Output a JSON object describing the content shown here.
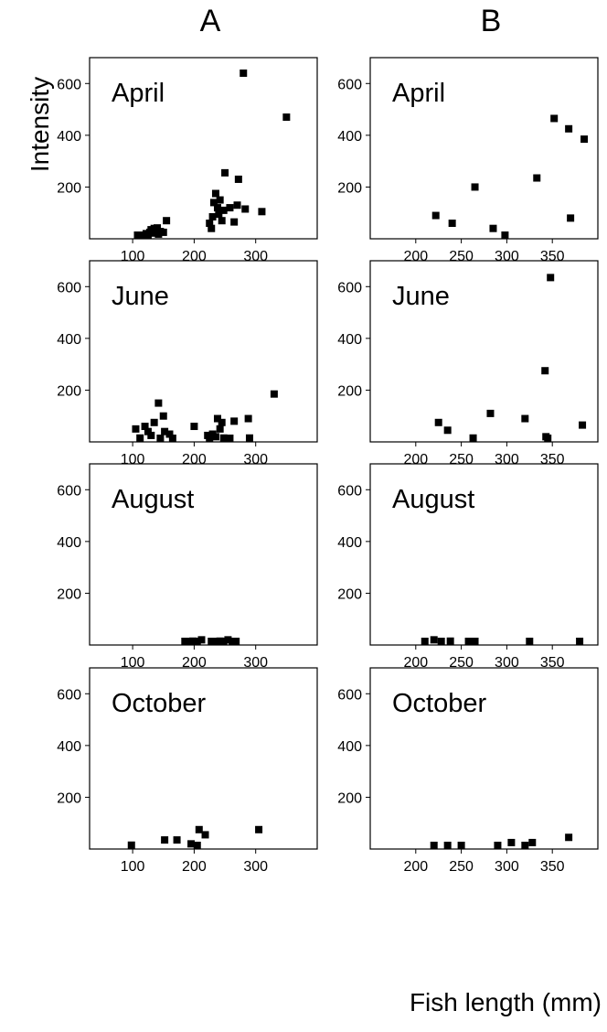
{
  "figure": {
    "column_labels": [
      "A",
      "B"
    ],
    "y_axis_label": "Intensity",
    "x_axis_label": "Fish length (mm)"
  },
  "colors": {
    "marker": "#000000",
    "axis": "#000000",
    "background": "#ffffff"
  },
  "chart_data": [
    {
      "type": "scatter",
      "column": "A",
      "title": "April",
      "xlim": [
        30,
        400
      ],
      "xticks": [
        100,
        200,
        300
      ],
      "ylim": [
        0,
        700
      ],
      "yticks": [
        200,
        400,
        600
      ],
      "grid": false,
      "points": [
        [
          108,
          5
        ],
        [
          115,
          8
        ],
        [
          120,
          12
        ],
        [
          122,
          20
        ],
        [
          125,
          15
        ],
        [
          128,
          25
        ],
        [
          130,
          35
        ],
        [
          132,
          22
        ],
        [
          135,
          40
        ],
        [
          138,
          30
        ],
        [
          140,
          42
        ],
        [
          142,
          18
        ],
        [
          145,
          28
        ],
        [
          150,
          25
        ],
        [
          155,
          70
        ],
        [
          225,
          60
        ],
        [
          228,
          40
        ],
        [
          230,
          85
        ],
        [
          232,
          140
        ],
        [
          235,
          175
        ],
        [
          238,
          120
        ],
        [
          240,
          95
        ],
        [
          242,
          150
        ],
        [
          245,
          70
        ],
        [
          248,
          110
        ],
        [
          250,
          255
        ],
        [
          258,
          120
        ],
        [
          265,
          65
        ],
        [
          270,
          130
        ],
        [
          272,
          230
        ],
        [
          283,
          115
        ],
        [
          280,
          640
        ],
        [
          310,
          105
        ],
        [
          350,
          470
        ]
      ]
    },
    {
      "type": "scatter",
      "column": "B",
      "title": "April",
      "xlim": [
        150,
        400
      ],
      "xticks": [
        200,
        250,
        300,
        350
      ],
      "ylim": [
        0,
        700
      ],
      "yticks": [
        200,
        400,
        600
      ],
      "grid": false,
      "points": [
        [
          222,
          90
        ],
        [
          240,
          60
        ],
        [
          265,
          200
        ],
        [
          285,
          40
        ],
        [
          298,
          5
        ],
        [
          333,
          235
        ],
        [
          352,
          465
        ],
        [
          368,
          425
        ],
        [
          370,
          80
        ],
        [
          385,
          385
        ]
      ]
    },
    {
      "type": "scatter",
      "column": "A",
      "title": "June",
      "xlim": [
        30,
        400
      ],
      "xticks": [
        100,
        200,
        300
      ],
      "ylim": [
        0,
        700
      ],
      "yticks": [
        200,
        400,
        600
      ],
      "grid": false,
      "points": [
        [
          105,
          50
        ],
        [
          112,
          15
        ],
        [
          120,
          60
        ],
        [
          125,
          40
        ],
        [
          130,
          25
        ],
        [
          135,
          75
        ],
        [
          142,
          150
        ],
        [
          145,
          10
        ],
        [
          150,
          100
        ],
        [
          152,
          40
        ],
        [
          160,
          30
        ],
        [
          165,
          10
        ],
        [
          200,
          60
        ],
        [
          222,
          25
        ],
        [
          225,
          10
        ],
        [
          230,
          30
        ],
        [
          235,
          20
        ],
        [
          238,
          90
        ],
        [
          242,
          50
        ],
        [
          245,
          75
        ],
        [
          248,
          15
        ],
        [
          252,
          10
        ],
        [
          258,
          10
        ],
        [
          265,
          80
        ],
        [
          288,
          90
        ],
        [
          290,
          15
        ],
        [
          330,
          185
        ]
      ]
    },
    {
      "type": "scatter",
      "column": "B",
      "title": "June",
      "xlim": [
        150,
        400
      ],
      "xticks": [
        200,
        250,
        300,
        350
      ],
      "ylim": [
        0,
        700
      ],
      "yticks": [
        200,
        400,
        600
      ],
      "grid": false,
      "points": [
        [
          225,
          75
        ],
        [
          235,
          45
        ],
        [
          263,
          15
        ],
        [
          282,
          110
        ],
        [
          320,
          90
        ],
        [
          342,
          275
        ],
        [
          343,
          20
        ],
        [
          345,
          10
        ],
        [
          348,
          635
        ],
        [
          383,
          65
        ]
      ]
    },
    {
      "type": "scatter",
      "column": "A",
      "title": "August",
      "xlim": [
        30,
        400
      ],
      "xticks": [
        100,
        200,
        300
      ],
      "ylim": [
        0,
        700
      ],
      "yticks": [
        200,
        400,
        600
      ],
      "grid": false,
      "points": [
        [
          185,
          5
        ],
        [
          193,
          10
        ],
        [
          198,
          15
        ],
        [
          205,
          8
        ],
        [
          212,
          20
        ],
        [
          228,
          5
        ],
        [
          235,
          10
        ],
        [
          242,
          15
        ],
        [
          248,
          5
        ],
        [
          255,
          20
        ],
        [
          262,
          8
        ],
        [
          268,
          10
        ]
      ]
    },
    {
      "type": "scatter",
      "column": "B",
      "title": "August",
      "xlim": [
        150,
        400
      ],
      "xticks": [
        200,
        250,
        300,
        350
      ],
      "ylim": [
        0,
        700
      ],
      "yticks": [
        200,
        400,
        600
      ],
      "grid": false,
      "points": [
        [
          210,
          10
        ],
        [
          220,
          20
        ],
        [
          228,
          5
        ],
        [
          238,
          15
        ],
        [
          258,
          10
        ],
        [
          265,
          10
        ],
        [
          325,
          5
        ],
        [
          380,
          5
        ]
      ]
    },
    {
      "type": "scatter",
      "column": "A",
      "title": "October",
      "xlim": [
        30,
        400
      ],
      "xticks": [
        100,
        200,
        300
      ],
      "ylim": [
        0,
        700
      ],
      "yticks": [
        200,
        400,
        600
      ],
      "grid": false,
      "points": [
        [
          98,
          15
        ],
        [
          152,
          35
        ],
        [
          172,
          35
        ],
        [
          195,
          20
        ],
        [
          205,
          10
        ],
        [
          208,
          75
        ],
        [
          218,
          55
        ],
        [
          305,
          75
        ]
      ]
    },
    {
      "type": "scatter",
      "column": "B",
      "title": "October",
      "xlim": [
        150,
        400
      ],
      "xticks": [
        200,
        250,
        300,
        350
      ],
      "ylim": [
        0,
        700
      ],
      "yticks": [
        200,
        400,
        600
      ],
      "grid": false,
      "points": [
        [
          220,
          5
        ],
        [
          235,
          5
        ],
        [
          250,
          10
        ],
        [
          290,
          5
        ],
        [
          305,
          25
        ],
        [
          320,
          5
        ],
        [
          328,
          25
        ],
        [
          368,
          45
        ]
      ]
    }
  ]
}
